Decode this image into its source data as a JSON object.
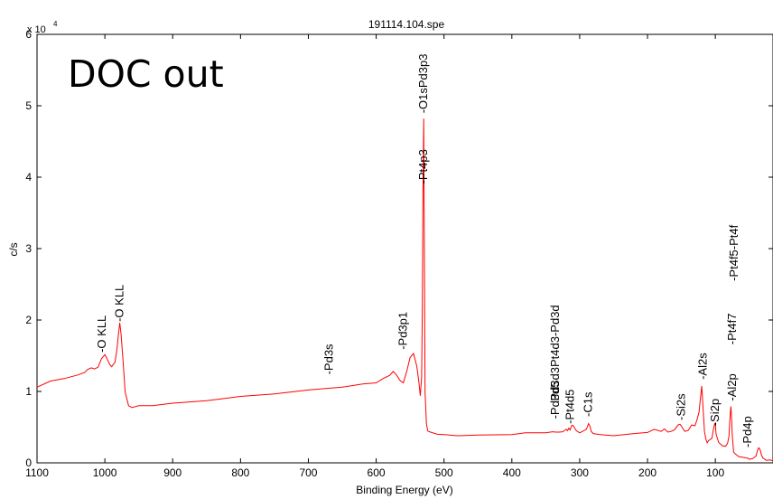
{
  "overlay": {
    "label": "DOC out"
  },
  "chart_data": {
    "type": "line",
    "title": "191114.104.spe",
    "xlabel": "Binding Energy (eV)",
    "ylabel": "c/s",
    "y_exponent_label": "x 10",
    "y_exponent_power": "4",
    "xlim": [
      1100,
      15
    ],
    "x_reversed": true,
    "ylim": [
      0,
      60000
    ],
    "x_ticks": [
      1100,
      1000,
      900,
      800,
      700,
      600,
      500,
      400,
      300,
      200,
      100
    ],
    "y_ticks": [
      0,
      1,
      2,
      3,
      4,
      5,
      6
    ],
    "grid": false,
    "line_color": "#ff0000",
    "series": [
      {
        "x": [
          1100,
          1080,
          1060,
          1040,
          1030,
          1025,
          1020,
          1015,
          1010,
          1005,
          1000,
          997,
          993,
          990,
          985,
          982,
          980,
          978,
          976,
          973,
          970,
          965,
          960,
          950,
          930,
          900,
          850,
          800,
          750,
          700,
          650,
          620,
          600,
          590,
          580,
          575,
          570,
          565,
          560,
          555,
          550,
          545,
          540,
          537,
          535,
          533,
          532,
          531,
          530,
          529,
          528,
          526,
          524,
          520,
          510,
          500,
          480,
          450,
          400,
          380,
          350,
          340,
          335,
          330,
          325,
          320,
          318,
          316,
          314,
          312,
          310,
          305,
          300,
          295,
          290,
          287,
          285,
          283,
          280,
          270,
          250,
          220,
          200,
          190,
          180,
          175,
          170,
          165,
          160,
          155,
          152,
          150,
          148,
          145,
          140,
          135,
          130,
          127,
          124,
          122,
          120,
          118,
          116,
          114,
          112,
          110,
          105,
          103,
          101,
          100,
          99,
          97,
          95,
          90,
          85,
          82,
          80,
          79,
          78,
          77,
          76,
          75,
          73,
          70,
          65,
          60,
          55,
          52,
          50,
          45,
          40,
          38,
          36,
          34,
          32,
          30,
          25,
          20,
          15
        ],
        "y": [
          10600,
          11400,
          11900,
          12300,
          12700,
          13000,
          13300,
          13100,
          13500,
          14600,
          15200,
          14500,
          13800,
          13400,
          14200,
          16000,
          18000,
          19500,
          18000,
          14000,
          10000,
          8000,
          7800,
          7900,
          8000,
          8300,
          8800,
          9300,
          9700,
          10100,
          10600,
          11000,
          11300,
          11800,
          12300,
          12700,
          12300,
          11500,
          11300,
          12800,
          14800,
          15200,
          13500,
          11200,
          9500,
          12000,
          22000,
          38000,
          48200,
          30000,
          10000,
          5500,
          4500,
          4200,
          4000,
          3900,
          3900,
          3900,
          4000,
          4100,
          4200,
          4300,
          4400,
          4300,
          4400,
          4600,
          4500,
          4800,
          4700,
          5200,
          5300,
          4400,
          4200,
          4400,
          4800,
          5500,
          5200,
          4300,
          4100,
          3900,
          3900,
          4100,
          4300,
          4600,
          4400,
          4700,
          4400,
          4400,
          4700,
          5200,
          5400,
          5100,
          4900,
          4400,
          4600,
          5200,
          5200,
          6000,
          7200,
          9000,
          10800,
          7500,
          4400,
          3300,
          2900,
          3100,
          3500,
          4500,
          5500,
          5300,
          4200,
          3400,
          2900,
          2300,
          2300,
          2700,
          3800,
          5300,
          7000,
          7800,
          6000,
          3800,
          1600,
          1200,
          900,
          700,
          700,
          600,
          600,
          600,
          1000,
          1600,
          2100,
          1800,
          1200,
          700,
          400,
          300,
          300
        ]
      }
    ],
    "annotations": [
      {
        "text": "-O KLL",
        "x": 1004,
        "y": 15200
      },
      {
        "text": "-O KLL",
        "x": 978,
        "y": 19500
      },
      {
        "text": "-Pd3s",
        "x": 669,
        "y": 12100
      },
      {
        "text": "-Pd3p1",
        "x": 560,
        "y": 15600
      },
      {
        "text": "-Pt4p3",
        "x": 530,
        "y": 38800
      },
      {
        "text": "-O1sPd3p3",
        "x": 530,
        "y": 48700
      },
      {
        "text": "-Pd3d5",
        "x": 336,
        "y": 5900
      },
      {
        "text": "Pd3d3Pt4d3-Pd3d",
        "x": 336,
        "y": 8400
      },
      {
        "text": "-Pt4d5",
        "x": 314,
        "y": 5200
      },
      {
        "text": "-C1s",
        "x": 287,
        "y": 6200
      },
      {
        "text": "-Si2s",
        "x": 150,
        "y": 5700
      },
      {
        "text": "-Al2s",
        "x": 118,
        "y": 11400
      },
      {
        "text": "-Si2p",
        "x": 100,
        "y": 4900
      },
      {
        "text": "-Al2p",
        "x": 75,
        "y": 8400
      },
      {
        "text": "-Pt4f7",
        "x": 75,
        "y": 16300
      },
      {
        "text": "-Pt4f5-Pt4f",
        "x": 72,
        "y": 25200
      },
      {
        "text": "-Pd4p",
        "x": 52,
        "y": 1900
      }
    ]
  }
}
